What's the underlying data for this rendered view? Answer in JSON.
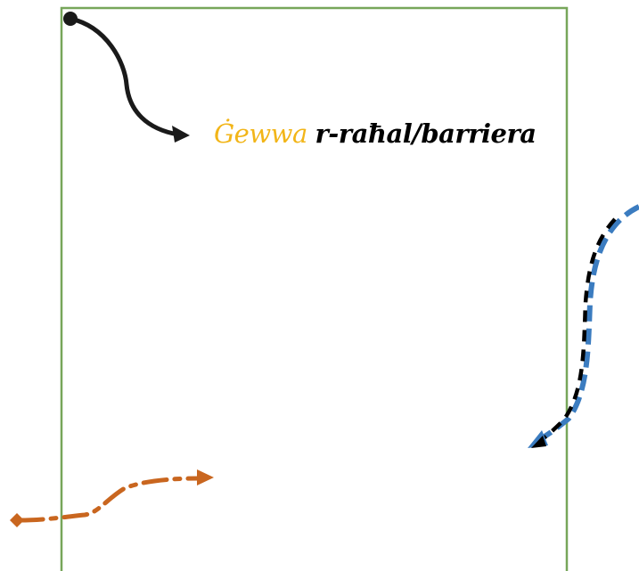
{
  "label": {
    "highlight": "Ġewwa",
    "rest": "r-raħal/barriera"
  },
  "colors": {
    "boundary": "#77a65a",
    "highlight": "#f2b518",
    "text": "#000000",
    "entry_arrow": "#1a1a1a",
    "blue_arrow": "#3b7cc0",
    "black_dash": "#000000",
    "orange_arrow": "#c9661f"
  }
}
